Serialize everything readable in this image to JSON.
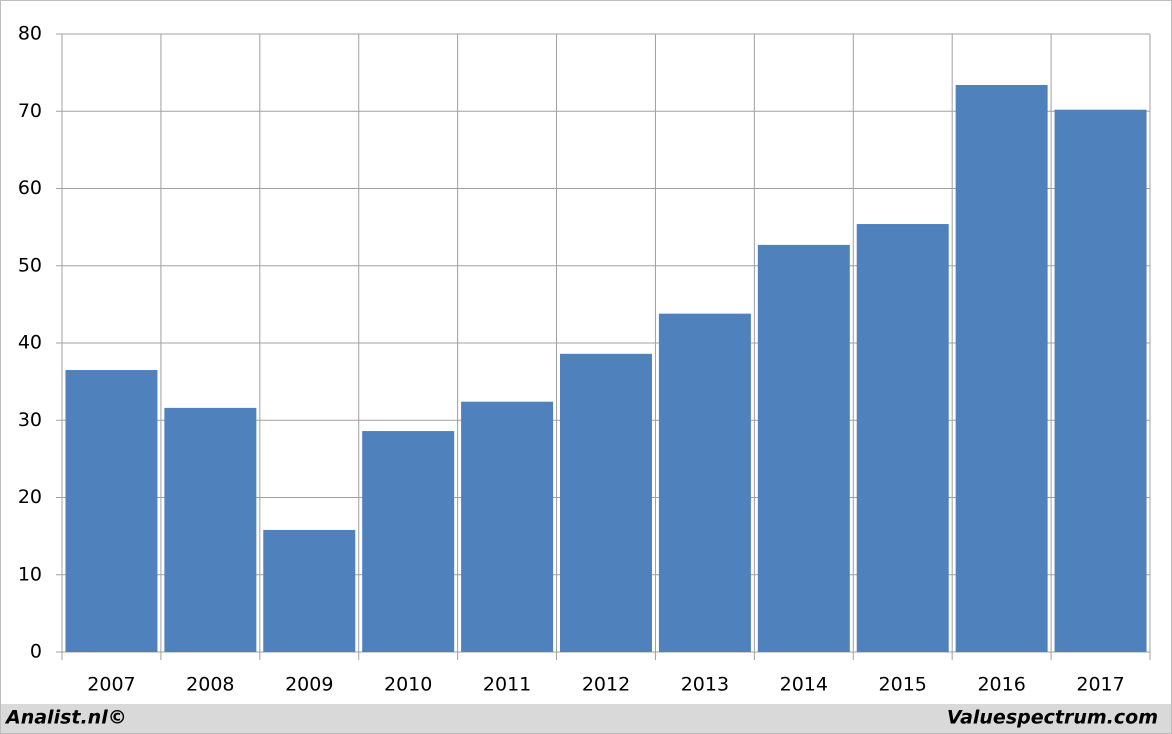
{
  "chart_data": {
    "type": "bar",
    "categories": [
      "2007",
      "2008",
      "2009",
      "2010",
      "2011",
      "2012",
      "2013",
      "2014",
      "2015",
      "2016",
      "2017"
    ],
    "values": [
      36.5,
      31.6,
      15.8,
      28.6,
      32.4,
      38.6,
      43.8,
      52.7,
      55.4,
      73.4,
      70.2
    ],
    "color": "#4f81bd",
    "ylim": [
      0,
      80
    ],
    "yticks": [
      0,
      10,
      20,
      30,
      40,
      50,
      60,
      70,
      80
    ],
    "grid": true,
    "footer_left": "Analist.nl©",
    "footer_right": "Valuespectrum.com"
  }
}
